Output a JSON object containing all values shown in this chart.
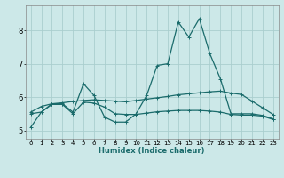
{
  "xlabel": "Humidex (Indice chaleur)",
  "bg_color": "#cce8e8",
  "grid_color": "#aacece",
  "line_color": "#1a6b6b",
  "spine_color": "#888888",
  "x_ticks": [
    0,
    1,
    2,
    3,
    4,
    5,
    6,
    7,
    8,
    9,
    10,
    11,
    12,
    13,
    14,
    15,
    16,
    17,
    18,
    19,
    20,
    21,
    22,
    23
  ],
  "y_ticks": [
    5,
    6,
    7,
    8
  ],
  "ylim": [
    4.75,
    8.75
  ],
  "xlim": [
    -0.5,
    23.5
  ],
  "series1_x": [
    0,
    1,
    2,
    3,
    4,
    5,
    6,
    7,
    8,
    9,
    10,
    11,
    12,
    13,
    14,
    15,
    16,
    17,
    18,
    19,
    20,
    21,
    22,
    23
  ],
  "series1_y": [
    5.1,
    5.55,
    5.8,
    5.8,
    5.55,
    6.4,
    6.05,
    5.4,
    5.25,
    5.25,
    5.5,
    6.05,
    6.95,
    7.0,
    8.25,
    7.8,
    8.35,
    7.3,
    6.55,
    5.5,
    5.5,
    5.5,
    5.45,
    5.35
  ],
  "series2_x": [
    0,
    1,
    2,
    3,
    4,
    5,
    6,
    7,
    8,
    9,
    10,
    11,
    12,
    13,
    14,
    15,
    16,
    17,
    18,
    19,
    20,
    21,
    22,
    23
  ],
  "series2_y": [
    5.55,
    5.72,
    5.8,
    5.83,
    5.87,
    5.9,
    5.92,
    5.9,
    5.88,
    5.86,
    5.9,
    5.94,
    5.98,
    6.02,
    6.07,
    6.1,
    6.13,
    6.16,
    6.18,
    6.12,
    6.08,
    5.88,
    5.68,
    5.48
  ],
  "series3_x": [
    0,
    1,
    2,
    3,
    4,
    5,
    6,
    7,
    8,
    9,
    10,
    11,
    12,
    13,
    14,
    15,
    16,
    17,
    18,
    19,
    20,
    21,
    22,
    23
  ],
  "series3_y": [
    5.5,
    5.55,
    5.78,
    5.78,
    5.5,
    5.85,
    5.82,
    5.7,
    5.5,
    5.48,
    5.48,
    5.52,
    5.56,
    5.58,
    5.6,
    5.6,
    5.6,
    5.58,
    5.55,
    5.48,
    5.46,
    5.46,
    5.43,
    5.33
  ],
  "tick_fontsize": 5,
  "xlabel_fontsize": 6,
  "marker_size": 2.5,
  "linewidth": 0.9
}
